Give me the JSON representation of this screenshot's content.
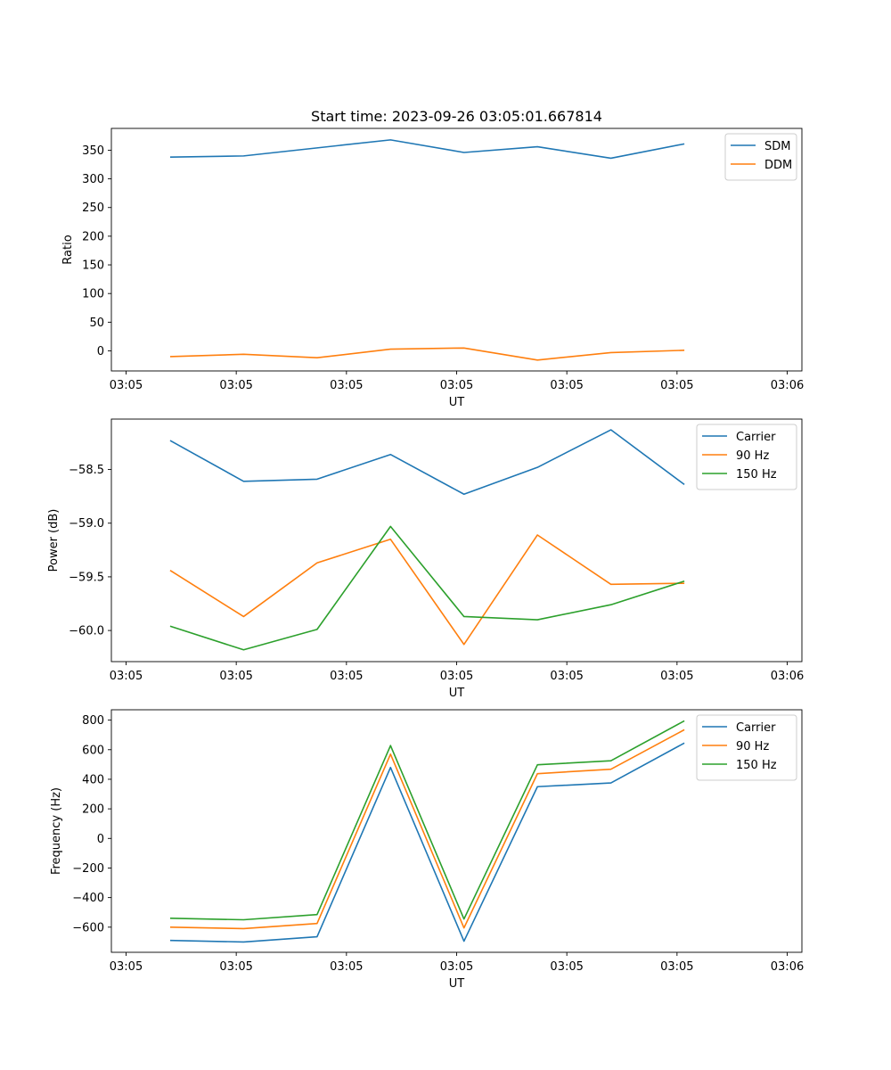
{
  "figure_title": "Start time: 2023-09-26 03:05:01.667814",
  "chart_data": [
    {
      "type": "line",
      "title": "Start time: 2023-09-26 03:05:01.667814",
      "xlabel": "UT",
      "ylabel": "Ratio",
      "x": [
        1,
        2,
        3,
        4,
        5,
        6,
        7,
        8
      ],
      "xlim": [
        0.2,
        9.6
      ],
      "xticks": [
        0.4,
        1.9,
        3.4,
        4.9,
        6.4,
        7.9,
        9.4
      ],
      "xtick_labels": [
        "03:05",
        "03:05",
        "03:05",
        "03:05",
        "03:05",
        "03:05",
        "03:06"
      ],
      "ylim": [
        -35,
        388
      ],
      "yticks": [
        0,
        50,
        100,
        150,
        200,
        250,
        300,
        350
      ],
      "ytick_labels": [
        "0",
        "50",
        "100",
        "150",
        "200",
        "250",
        "300",
        "350"
      ],
      "legend_position": "top-right",
      "series": [
        {
          "name": "SDM",
          "color": "#1f77b4",
          "values": [
            338,
            340,
            354,
            368,
            346,
            356,
            336,
            361
          ]
        },
        {
          "name": "DDM",
          "color": "#ff7f0e",
          "values": [
            -10,
            -6,
            -12,
            3,
            5,
            -16,
            -3,
            1
          ]
        }
      ]
    },
    {
      "type": "line",
      "title": "",
      "xlabel": "UT",
      "ylabel": "Power (dB)",
      "x": [
        1,
        2,
        3,
        4,
        5,
        6,
        7,
        8
      ],
      "xlim": [
        0.2,
        9.6
      ],
      "xticks": [
        0.4,
        1.9,
        3.4,
        4.9,
        6.4,
        7.9,
        9.4
      ],
      "xtick_labels": [
        "03:05",
        "03:05",
        "03:05",
        "03:05",
        "03:05",
        "03:05",
        "03:06"
      ],
      "ylim": [
        -60.29,
        -58.03
      ],
      "yticks": [
        -60.0,
        -59.5,
        -59.0,
        -58.5
      ],
      "ytick_labels": [
        "−60.0",
        "−59.5",
        "−59.0",
        "−58.5"
      ],
      "legend_position": "top-right",
      "series": [
        {
          "name": "Carrier",
          "color": "#1f77b4",
          "values": [
            -58.23,
            -58.61,
            -58.59,
            -58.36,
            -58.73,
            -58.48,
            -58.13,
            -58.64
          ]
        },
        {
          "name": "90 Hz",
          "color": "#ff7f0e",
          "values": [
            -59.44,
            -59.87,
            -59.37,
            -59.15,
            -60.13,
            -59.11,
            -59.57,
            -59.56
          ]
        },
        {
          "name": "150 Hz",
          "color": "#2ca02c",
          "values": [
            -59.96,
            -60.18,
            -59.99,
            -59.03,
            -59.87,
            -59.9,
            -59.76,
            -59.54
          ]
        }
      ]
    },
    {
      "type": "line",
      "title": "",
      "xlabel": "UT",
      "ylabel": "Frequency (Hz)",
      "x": [
        1,
        2,
        3,
        4,
        5,
        6,
        7,
        8
      ],
      "xlim": [
        0.2,
        9.6
      ],
      "xticks": [
        0.4,
        1.9,
        3.4,
        4.9,
        6.4,
        7.9,
        9.4
      ],
      "xtick_labels": [
        "03:05",
        "03:05",
        "03:05",
        "03:05",
        "03:05",
        "03:05",
        "03:06"
      ],
      "ylim": [
        -770,
        870
      ],
      "yticks": [
        -600,
        -400,
        -200,
        0,
        200,
        400,
        600,
        800
      ],
      "ytick_labels": [
        "−600",
        "−400",
        "−200",
        "0",
        "200",
        "400",
        "600",
        "800"
      ],
      "legend_position": "top-right",
      "series": [
        {
          "name": "Carrier",
          "color": "#1f77b4",
          "values": [
            -690,
            -700,
            -665,
            480,
            -695,
            350,
            375,
            645
          ]
        },
        {
          "name": "90 Hz",
          "color": "#ff7f0e",
          "values": [
            -600,
            -610,
            -575,
            570,
            -605,
            438,
            468,
            735
          ]
        },
        {
          "name": "150 Hz",
          "color": "#2ca02c",
          "values": [
            -540,
            -550,
            -515,
            628,
            -545,
            498,
            525,
            795
          ]
        }
      ]
    }
  ]
}
